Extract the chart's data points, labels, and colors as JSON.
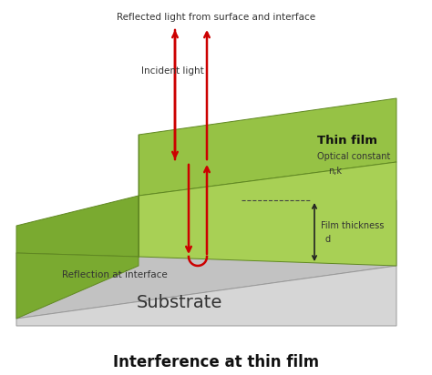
{
  "title": "Interference at thin film",
  "title_fontsize": 12,
  "title_fontweight": "bold",
  "bg_color": "#ffffff",
  "sub_top_color": "#c2c2c2",
  "sub_front_color": "#d6d6d6",
  "sub_right_color": "#b8b8b8",
  "film_top_color": "#96c245",
  "film_top_dark_color": "#7aaa30",
  "film_front_color": "#a8d055",
  "film_side_color": "#7aaa30",
  "film_step_face_color": "#88bb35",
  "arrow_color": "#cc0000",
  "text_color": "#333333",
  "dim_arrow_color": "#222222",
  "label_thin_film": "Thin film",
  "label_optical": "Optical constant",
  "label_nk": "n,k",
  "label_film_thickness": "Film thickness",
  "label_d": "d",
  "label_substrate": "Substrate",
  "label_reflection": "Reflection at interface",
  "label_incident": "Incident light",
  "label_reflected": "Reflected light from surface and interface"
}
